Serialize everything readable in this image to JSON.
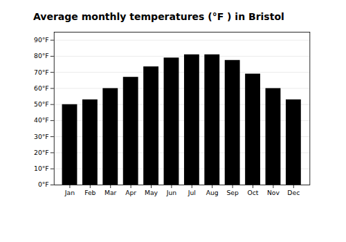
{
  "chart_data": {
    "type": "bar",
    "title": "Average monthly temperatures (°F ) in Bristol",
    "categories": [
      "Jan",
      "Feb",
      "Mar",
      "Apr",
      "May",
      "Jun",
      "Jul",
      "Aug",
      "Sep",
      "Oct",
      "Nov",
      "Dec"
    ],
    "values": [
      50,
      53,
      60,
      67,
      73.5,
      79,
      81,
      81,
      77.5,
      69,
      60,
      53
    ],
    "ylim": [
      0,
      95
    ],
    "yticks": [
      {
        "value": 0,
        "label": "0°F"
      },
      {
        "value": 10,
        "label": "10°F"
      },
      {
        "value": 20,
        "label": "20°F"
      },
      {
        "value": 30,
        "label": "30°F"
      },
      {
        "value": 40,
        "label": "40°F"
      },
      {
        "value": 50,
        "label": "50°F"
      },
      {
        "value": 60,
        "label": "60°F"
      },
      {
        "value": 70,
        "label": "70°F"
      },
      {
        "value": 80,
        "label": "80°F"
      },
      {
        "value": 90,
        "label": "90°F"
      }
    ],
    "grid": true
  }
}
